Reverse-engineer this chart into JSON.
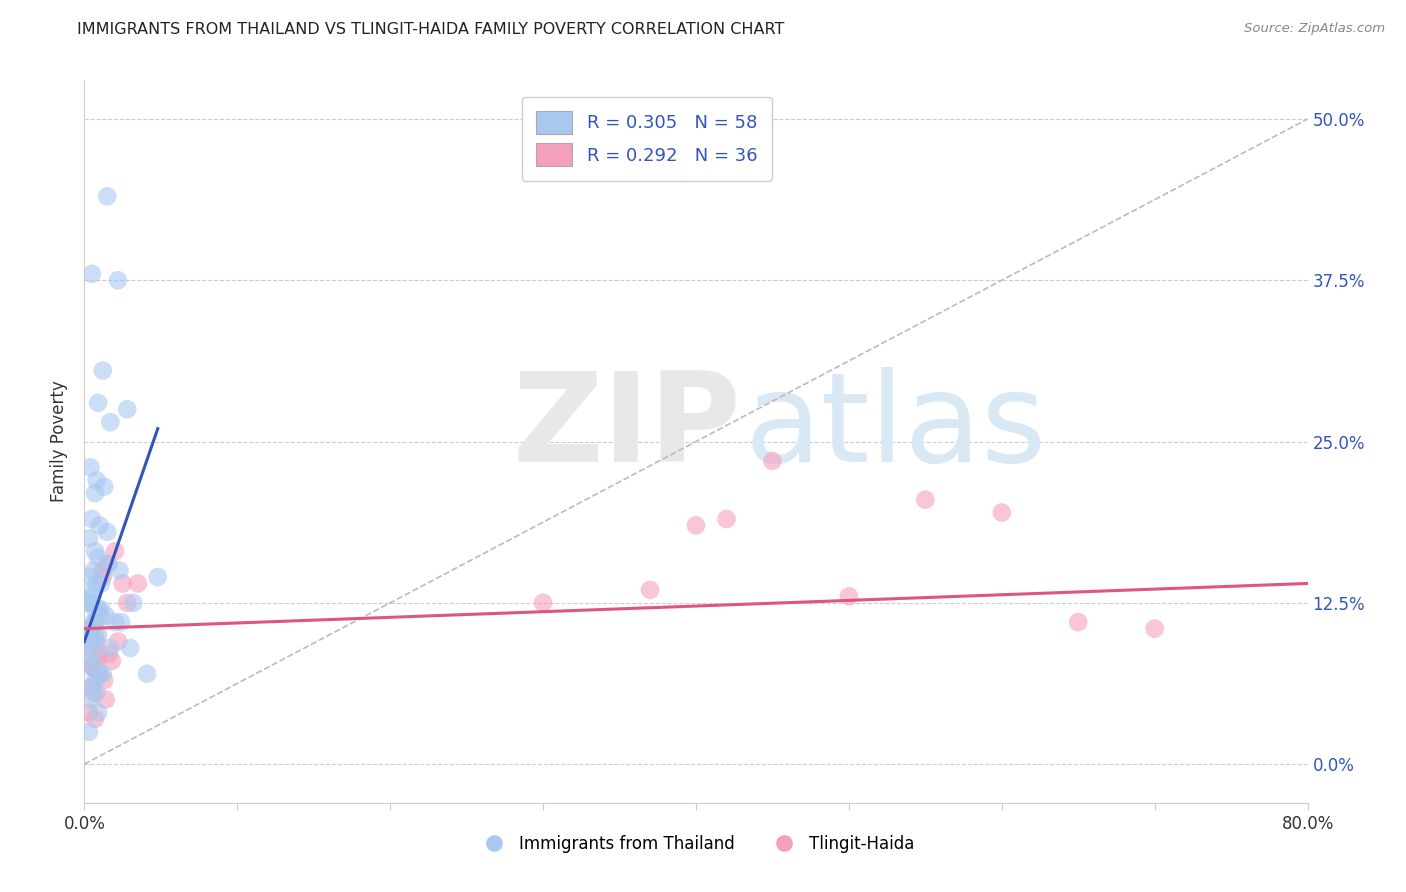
{
  "title": "IMMIGRANTS FROM THAILAND VS TLINGIT-HAIDA FAMILY POVERTY CORRELATION CHART",
  "source": "Source: ZipAtlas.com",
  "ylabel": "Family Poverty",
  "ytick_values": [
    0.0,
    12.5,
    25.0,
    37.5,
    50.0
  ],
  "xlim": [
    0.0,
    80.0
  ],
  "ylim": [
    -3.0,
    53.0
  ],
  "y_data_min": 0.0,
  "y_data_max": 50.0,
  "legend_label1": "R = 0.305   N = 58",
  "legend_label2": "R = 0.292   N = 36",
  "legend_item1": "Immigrants from Thailand",
  "legend_item2": "Tlingit-Haida",
  "color_blue": "#A8C8F0",
  "color_pink": "#F4A0BC",
  "color_blue_line": "#3355BB",
  "color_pink_line": "#E05580",
  "color_gray_line": "#BBBBBB",
  "blue_scatter_x": [
    1.5,
    2.2,
    0.5,
    1.2,
    0.9,
    2.8,
    1.7,
    0.4,
    0.8,
    1.3,
    0.7,
    0.5,
    1.0,
    1.5,
    0.3,
    0.7,
    0.9,
    1.6,
    0.6,
    0.4,
    0.8,
    1.1,
    0.6,
    0.5,
    0.4,
    0.3,
    0.7,
    0.9,
    1.1,
    1.4,
    1.0,
    2.3,
    3.2,
    2.0,
    0.6,
    0.8,
    0.4,
    0.5,
    2.4,
    4.8,
    0.7,
    0.9,
    0.6,
    0.4,
    1.7,
    3.0,
    0.5,
    4.1,
    0.3,
    0.6,
    1.0,
    1.2,
    0.7,
    0.5,
    0.8,
    0.4,
    0.9,
    0.3
  ],
  "blue_scatter_y": [
    44.0,
    37.5,
    38.0,
    30.5,
    28.0,
    27.5,
    26.5,
    23.0,
    22.0,
    21.5,
    21.0,
    19.0,
    18.5,
    18.0,
    17.5,
    16.5,
    16.0,
    15.5,
    15.0,
    14.5,
    14.0,
    14.0,
    13.5,
    13.0,
    12.5,
    12.5,
    12.0,
    12.0,
    12.0,
    11.5,
    11.5,
    15.0,
    12.5,
    11.0,
    11.0,
    11.0,
    10.5,
    10.5,
    11.0,
    14.5,
    10.0,
    10.0,
    9.5,
    9.5,
    9.0,
    9.0,
    8.5,
    7.0,
    8.0,
    7.5,
    7.0,
    7.0,
    6.5,
    6.0,
    5.5,
    5.0,
    4.0,
    2.5
  ],
  "pink_scatter_x": [
    0.5,
    0.8,
    1.2,
    1.5,
    0.4,
    0.7,
    2.0,
    1.8,
    0.6,
    0.9,
    1.3,
    2.5,
    0.5,
    37.0,
    50.0,
    55.0,
    60.0,
    65.0,
    70.0,
    45.0,
    30.0,
    2.2,
    1.0,
    0.8,
    0.6,
    1.4,
    0.3,
    2.8,
    1.6,
    0.4,
    3.5,
    1.2,
    0.7,
    0.5,
    42.0,
    40.0
  ],
  "pink_scatter_y": [
    10.5,
    9.5,
    14.5,
    15.5,
    10.5,
    11.0,
    16.5,
    8.0,
    7.5,
    7.0,
    6.5,
    14.0,
    6.0,
    13.5,
    13.0,
    20.5,
    19.5,
    11.0,
    10.5,
    23.5,
    12.5,
    9.5,
    8.5,
    8.0,
    5.5,
    5.0,
    4.0,
    12.5,
    8.5,
    9.0,
    14.0,
    15.0,
    3.5,
    7.5,
    19.0,
    18.5
  ],
  "blue_line_x": [
    0.0,
    4.8
  ],
  "blue_line_y_start": 9.5,
  "blue_line_y_end": 26.0,
  "pink_line_x": [
    0.0,
    80.0
  ],
  "pink_line_y_start": 10.5,
  "pink_line_y_end": 14.0,
  "diag_line_x": [
    0.0,
    80.0
  ],
  "diag_line_y": [
    0.0,
    50.0
  ]
}
